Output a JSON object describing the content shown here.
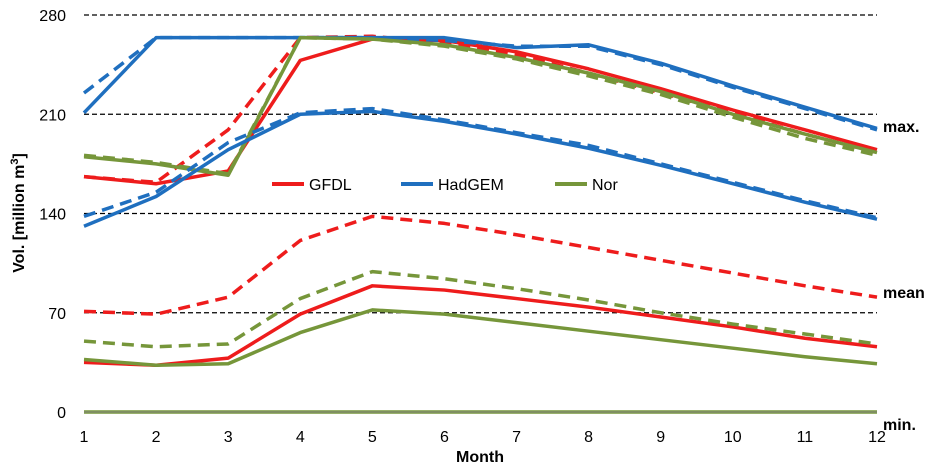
{
  "chart_data": {
    "type": "line",
    "xlabel": "Month",
    "ylabel": "Vol. [million m3]",
    "ylabel_main": "Vol. [million m",
    "ylabel_sup": "3",
    "ylabel_end": "]",
    "xlim": [
      1,
      12
    ],
    "ylim": [
      0,
      280
    ],
    "x": [
      1,
      2,
      3,
      4,
      5,
      6,
      7,
      8,
      9,
      10,
      11,
      12
    ],
    "x_ticks": [
      "1",
      "2",
      "3",
      "4",
      "5",
      "6",
      "7",
      "8",
      "9",
      "10",
      "11",
      "12"
    ],
    "y_ticks": [
      0,
      70,
      140,
      210,
      280
    ],
    "y_tick_labels": [
      "0",
      "70",
      "140",
      "210",
      "280"
    ],
    "grid": "horizontal dashed",
    "legend": [
      {
        "name": "GFDL",
        "color": "#ee1c1c"
      },
      {
        "name": "HadGEM",
        "color": "#1f6fbf"
      },
      {
        "name": "Nor",
        "color": "#76963a"
      }
    ],
    "legend_placement": "center",
    "side_labels": [
      "max.",
      "mean",
      "min."
    ],
    "series": [
      {
        "model": "GFDL",
        "stat": "max",
        "style": "solid",
        "color": "#ee1c1c",
        "values": [
          166,
          161,
          170,
          248,
          263,
          262,
          254,
          242,
          228,
          213,
          199,
          185
        ]
      },
      {
        "model": "GFDL",
        "stat": "max",
        "style": "dashed",
        "color": "#ee1c1c",
        "values": [
          166,
          162,
          199,
          264,
          265,
          260,
          252,
          239,
          225,
          211,
          196,
          183
        ]
      },
      {
        "model": "HadGEM",
        "stat": "max",
        "style": "solid",
        "color": "#1f6fbf",
        "values": [
          211,
          264,
          264,
          264,
          264,
          264,
          257,
          259,
          246,
          230,
          215,
          200
        ]
      },
      {
        "model": "HadGEM",
        "stat": "max",
        "style": "dashed",
        "color": "#1f6fbf",
        "values": [
          225,
          264,
          264,
          264,
          264,
          262,
          258,
          258,
          245,
          229,
          214,
          199
        ]
      },
      {
        "model": "Nor",
        "stat": "max",
        "style": "solid",
        "color": "#76963a",
        "values": [
          180,
          175,
          167,
          264,
          263,
          259,
          250,
          239,
          226,
          210,
          196,
          183
        ]
      },
      {
        "model": "Nor",
        "stat": "max",
        "style": "dashed",
        "color": "#76963a",
        "values": [
          181,
          176,
          168,
          264,
          263,
          258,
          249,
          237,
          224,
          208,
          193,
          181
        ]
      },
      {
        "model": "HadGEM",
        "stat": "mid",
        "style": "solid",
        "color": "#1f6fbf",
        "values": [
          131,
          152,
          185,
          210,
          212,
          205,
          196,
          186,
          174,
          161,
          148,
          136
        ]
      },
      {
        "model": "HadGEM",
        "stat": "mid",
        "style": "dashed",
        "color": "#1f6fbf",
        "values": [
          138,
          155,
          190,
          211,
          214,
          206,
          197,
          188,
          175,
          162,
          149,
          137
        ]
      },
      {
        "model": "GFDL",
        "stat": "mean",
        "style": "solid",
        "color": "#ee1c1c",
        "values": [
          35,
          33,
          38,
          69,
          89,
          86,
          80,
          74,
          67,
          60,
          52,
          46
        ]
      },
      {
        "model": "GFDL",
        "stat": "mean",
        "style": "dashed",
        "color": "#ee1c1c",
        "values": [
          71,
          69,
          81,
          121,
          138,
          133,
          125,
          116,
          107,
          98,
          89,
          81
        ]
      },
      {
        "model": "Nor",
        "stat": "mean",
        "style": "solid",
        "color": "#76963a",
        "values": [
          37,
          33,
          34,
          56,
          72,
          69,
          63,
          57,
          51,
          45,
          39,
          34
        ]
      },
      {
        "model": "Nor",
        "stat": "mean",
        "style": "dashed",
        "color": "#76963a",
        "values": [
          50,
          46,
          48,
          80,
          99,
          94,
          87,
          79,
          70,
          62,
          55,
          48
        ]
      },
      {
        "model": "all",
        "stat": "min",
        "style": "solid",
        "color": "#76963a",
        "values": [
          0,
          0,
          0,
          0,
          0,
          0,
          0,
          0,
          0,
          0,
          0,
          0
        ]
      }
    ]
  }
}
